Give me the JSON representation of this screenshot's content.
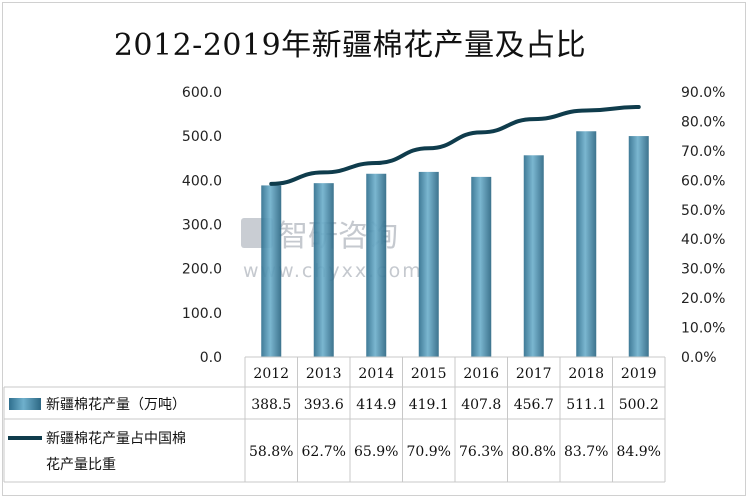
{
  "title": "2012-2019年新疆棉花产量及占比",
  "watermark": {
    "brand": "智研咨询",
    "url": "www.chyxx.com"
  },
  "chart_data": {
    "type": "bar",
    "categories": [
      "2012",
      "2013",
      "2014",
      "2015",
      "2016",
      "2017",
      "2018",
      "2019"
    ],
    "series": [
      {
        "name": "新疆棉花产量（万吨）",
        "type": "bar",
        "axis": "left",
        "color": "#4a8fab",
        "values": [
          388.5,
          393.6,
          414.9,
          419.1,
          407.8,
          456.7,
          511.1,
          500.2
        ],
        "labels": [
          "388.5",
          "393.6",
          "414.9",
          "419.1",
          "407.8",
          "456.7",
          "511.1",
          "500.2"
        ]
      },
      {
        "name": "新疆棉花产量占中国棉花产量比重",
        "type": "line",
        "axis": "right",
        "color": "#0f3c4c",
        "values": [
          0.588,
          0.627,
          0.659,
          0.709,
          0.763,
          0.808,
          0.837,
          0.849
        ],
        "labels": [
          "58.8%",
          "62.7%",
          "65.9%",
          "70.9%",
          "76.3%",
          "80.8%",
          "83.7%",
          "84.9%"
        ]
      }
    ],
    "y_left": {
      "min": 0,
      "max": 600,
      "ticks": [
        "0.0",
        "100.0",
        "200.0",
        "300.0",
        "400.0",
        "500.0",
        "600.0"
      ]
    },
    "y_right": {
      "min": 0,
      "max": 0.9,
      "ticks": [
        "0.0%",
        "10.0%",
        "20.0%",
        "30.0%",
        "40.0%",
        "50.0%",
        "60.0%",
        "70.0%",
        "80.0%",
        "90.0%"
      ]
    },
    "grid": false,
    "legend": "data-table",
    "table": {
      "row_labels": [
        [
          "新疆棉花产量（万吨）"
        ],
        [
          "新疆棉花产量占中国棉",
          "花产量比重"
        ]
      ]
    }
  }
}
